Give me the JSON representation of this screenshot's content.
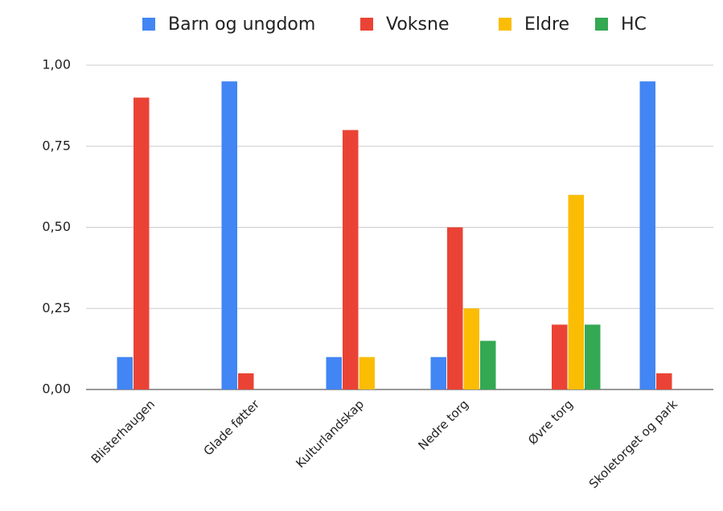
{
  "chart_data": {
    "type": "bar",
    "categories": [
      "Blisterhaugen",
      "Glade føtter",
      "Kulturlandskap",
      "Nedre torg",
      "Øvre torg",
      "Skoletorget og park"
    ],
    "series": [
      {
        "name": "Barn og ungdom",
        "color": "#4285f4",
        "values": [
          0.1,
          0.95,
          0.1,
          0.1,
          0,
          0.95
        ]
      },
      {
        "name": "Voksne",
        "color": "#ea4335",
        "values": [
          0.9,
          0.05,
          0.8,
          0.5,
          0.2,
          0.05
        ]
      },
      {
        "name": "Eldre",
        "color": "#fbbc04",
        "values": [
          0,
          0,
          0.1,
          0.25,
          0.6,
          0
        ]
      },
      {
        "name": "HC",
        "color": "#34a853",
        "values": [
          0,
          0,
          0,
          0.15,
          0.2,
          0
        ]
      }
    ],
    "ylim": [
      0,
      1
    ],
    "yticks": [
      {
        "value": 0,
        "label": "0,00"
      },
      {
        "value": 0.25,
        "label": "0,25"
      },
      {
        "value": 0.5,
        "label": "0,50"
      },
      {
        "value": 0.75,
        "label": "0,75"
      },
      {
        "value": 1,
        "label": "1,00"
      }
    ],
    "grid": true,
    "legend": "top"
  }
}
